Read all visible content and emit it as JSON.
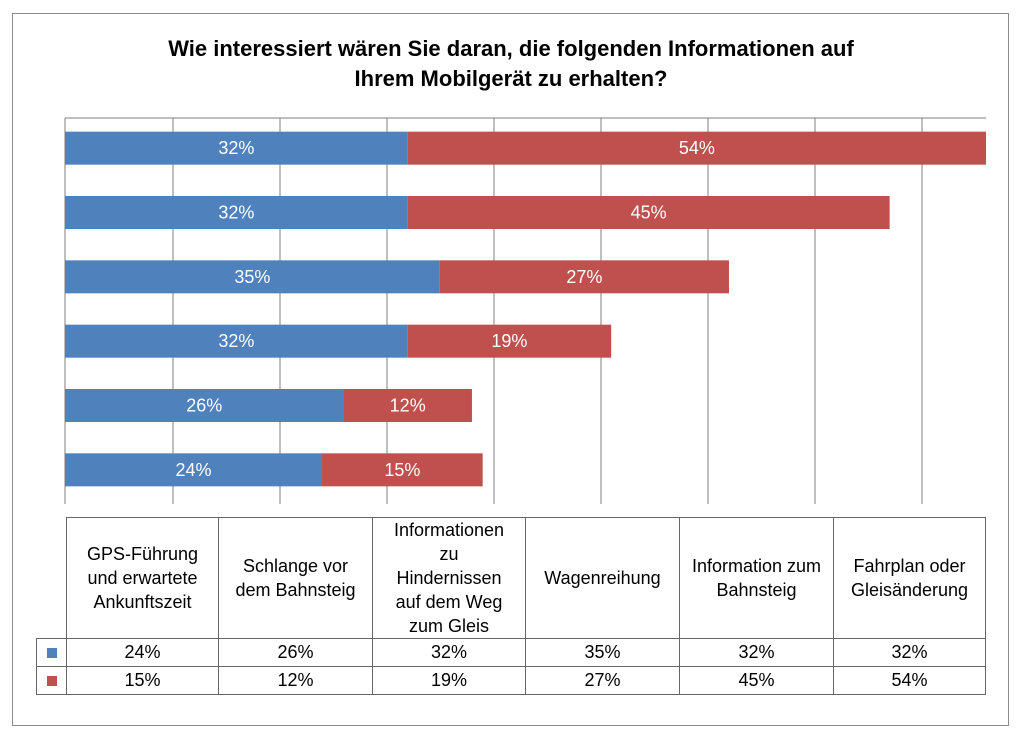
{
  "title_lines": [
    "Wie interessiert wären Sie daran, die folgenden Informationen auf",
    "Ihrem Mobilgerät zu erhalten?"
  ],
  "colors": {
    "series1": "#4f81bd",
    "series2": "#c0504d",
    "grid": "#7f7f7f"
  },
  "chart_data": {
    "type": "bar",
    "orientation": "horizontal",
    "stacked": true,
    "title": "Wie interessiert wären Sie daran, die folgenden Informationen auf Ihrem Mobilgerät zu erhalten?",
    "categories": [
      "GPS-Führung und erwartete Ankunftszeit",
      "Schlange vor dem Bahnsteig",
      "Informationen zu Hindernissen auf dem Weg zum Gleis",
      "Wagenreihung",
      "Information zum Bahnsteig",
      "Fahrplan oder Gleisänderung"
    ],
    "series": [
      {
        "values": [
          24,
          26,
          32,
          35,
          32,
          32
        ],
        "labels": [
          "24%",
          "26%",
          "32%",
          "35%",
          "32%",
          "32%"
        ],
        "color": "#4f81bd"
      },
      {
        "values": [
          15,
          12,
          19,
          27,
          45,
          54
        ],
        "labels": [
          "15%",
          "12%",
          "19%",
          "27%",
          "45%",
          "54%"
        ],
        "color": "#c0504d"
      }
    ],
    "xlim": [
      0,
      86
    ],
    "grid": true,
    "legend": "data-table-below"
  },
  "table": {
    "headers": [
      "GPS-Führung und erwartete Ankunftszeit",
      "Schlange vor dem Bahnsteig",
      "Informationen zu Hindernissen auf dem Weg zum Gleis",
      "Wagenreihung",
      "Information zum Bahnsteig",
      "Fahrplan oder Gleisänderung"
    ],
    "rows": [
      [
        "24%",
        "26%",
        "32%",
        "35%",
        "32%",
        "32%"
      ],
      [
        "15%",
        "12%",
        "19%",
        "27%",
        "45%",
        "54%"
      ]
    ]
  }
}
